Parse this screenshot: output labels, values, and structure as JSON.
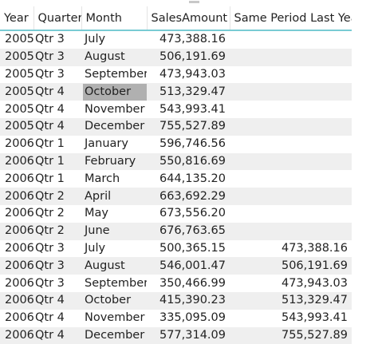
{
  "table": {
    "headers": [
      "Year",
      "Quarter",
      "Month",
      "SalesAmount",
      "Same Period Last Year"
    ],
    "rows": [
      [
        "2005",
        "Qtr 3",
        "July",
        "473,388.16",
        ""
      ],
      [
        "2005",
        "Qtr 3",
        "August",
        "506,191.69",
        ""
      ],
      [
        "2005",
        "Qtr 3",
        "September",
        "473,943.03",
        ""
      ],
      [
        "2005",
        "Qtr 4",
        "October",
        "513,329.47",
        ""
      ],
      [
        "2005",
        "Qtr 4",
        "November",
        "543,993.41",
        ""
      ],
      [
        "2005",
        "Qtr 4",
        "December",
        "755,527.89",
        ""
      ],
      [
        "2006",
        "Qtr 1",
        "January",
        "596,746.56",
        ""
      ],
      [
        "2006",
        "Qtr 1",
        "February",
        "550,816.69",
        ""
      ],
      [
        "2006",
        "Qtr 1",
        "March",
        "644,135.20",
        ""
      ],
      [
        "2006",
        "Qtr 2",
        "April",
        "663,692.29",
        ""
      ],
      [
        "2006",
        "Qtr 2",
        "May",
        "673,556.20",
        ""
      ],
      [
        "2006",
        "Qtr 2",
        "June",
        "676,763.65",
        ""
      ],
      [
        "2006",
        "Qtr 3",
        "July",
        "500,365.15",
        "473,388.16"
      ],
      [
        "2006",
        "Qtr 3",
        "August",
        "546,001.47",
        "506,191.69"
      ],
      [
        "2006",
        "Qtr 3",
        "September",
        "350,466.99",
        "473,943.03"
      ],
      [
        "2006",
        "Qtr 4",
        "October",
        "415,390.23",
        "513,329.47"
      ],
      [
        "2006",
        "Qtr 4",
        "November",
        "335,095.09",
        "543,993.41"
      ],
      [
        "2006",
        "Qtr 4",
        "December",
        "577,314.09",
        "755,527.89"
      ]
    ],
    "selected_cell": {
      "row": 3,
      "col": 2
    },
    "colors": {
      "band": "#efefef",
      "header_rule": "#79cbd3",
      "selection": "#b0b0b0"
    }
  }
}
